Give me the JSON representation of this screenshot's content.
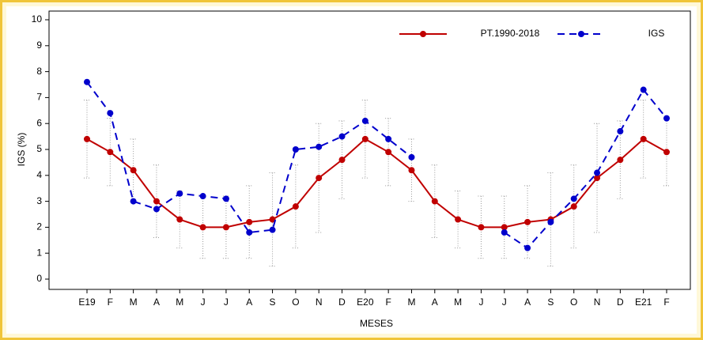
{
  "chart_data": {
    "type": "line",
    "y_label": "IGS (%)",
    "x_label": "MESES",
    "categories": [
      "E19",
      "F",
      "M",
      "A",
      "M",
      "J",
      "J",
      "A",
      "S",
      "O",
      "N",
      "D",
      "E20",
      "F",
      "M",
      "A",
      "M",
      "J",
      "J",
      "A",
      "S",
      "O",
      "N",
      "D",
      "E21",
      "F"
    ],
    "ylim": [
      0,
      10
    ],
    "yticks": [
      0,
      1,
      2,
      3,
      4,
      5,
      6,
      7,
      8,
      9,
      10
    ],
    "grid": false,
    "legend": "top-right",
    "series": [
      {
        "name": "PT.1990-2018",
        "color": "#c00000",
        "dash": false,
        "values": [
          5.4,
          4.9,
          4.2,
          3.0,
          2.3,
          2.0,
          2.0,
          2.2,
          2.3,
          2.8,
          3.9,
          4.6,
          5.4,
          4.9,
          4.2,
          3.0,
          2.3,
          2.0,
          2.0,
          2.2,
          2.3,
          2.8,
          3.9,
          4.6,
          5.4,
          4.9
        ],
        "errors": [
          1.5,
          1.3,
          1.2,
          1.4,
          1.1,
          1.2,
          1.2,
          1.4,
          1.8,
          1.6,
          2.1,
          1.5,
          1.5,
          1.3,
          1.2,
          1.4,
          1.1,
          1.2,
          1.2,
          1.4,
          1.8,
          1.6,
          2.1,
          1.5,
          1.5,
          1.3
        ]
      },
      {
        "name": "IGS",
        "color": "#0000cc",
        "dash": true,
        "values": [
          7.6,
          6.4,
          3.0,
          2.7,
          3.3,
          3.2,
          3.1,
          1.8,
          1.9,
          5.0,
          5.1,
          5.5,
          6.1,
          5.4,
          4.7,
          null,
          null,
          null,
          1.8,
          1.2,
          2.2,
          3.1,
          4.1,
          5.7,
          7.3,
          6.2
        ]
      }
    ]
  }
}
